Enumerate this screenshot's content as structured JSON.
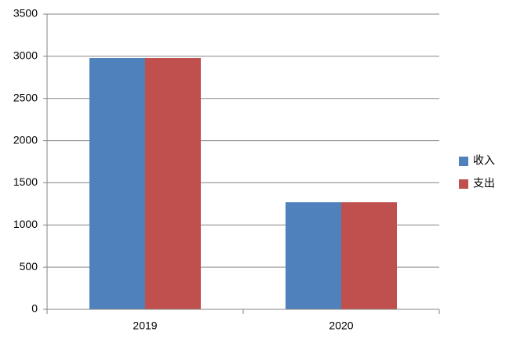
{
  "chart_data": {
    "type": "bar",
    "categories": [
      "2019",
      "2020"
    ],
    "series": [
      {
        "name": "收入",
        "color": "#4f81bd",
        "values": [
          2980,
          1270
        ]
      },
      {
        "name": "支出",
        "color": "#c0504d",
        "values": [
          2980,
          1270
        ]
      }
    ],
    "ylim": [
      0,
      3500
    ],
    "yticks": [
      0,
      500,
      1000,
      1500,
      2000,
      2500,
      3000,
      3500
    ],
    "grid": true,
    "legend": "right"
  }
}
